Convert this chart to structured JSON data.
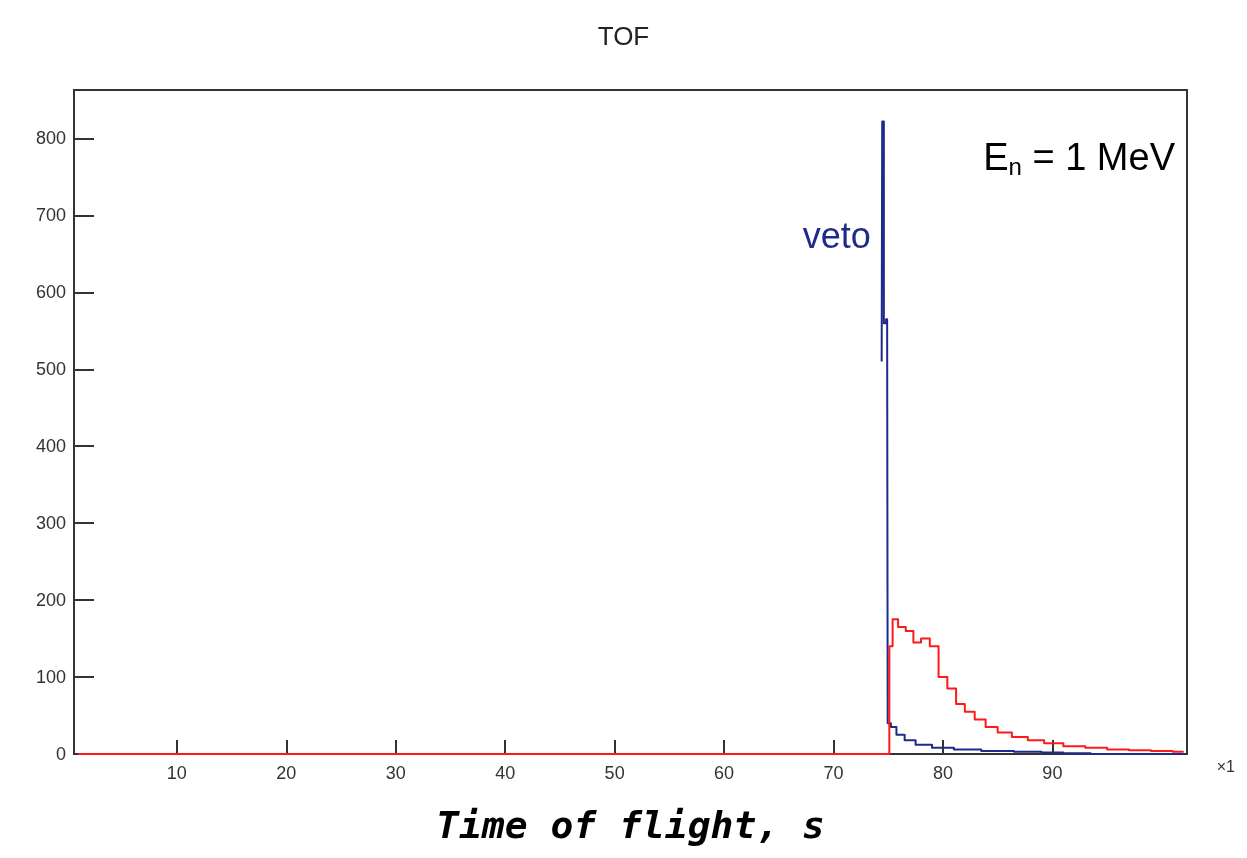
{
  "chart_data": {
    "type": "step",
    "title": "TOF",
    "xlabel": "Time of flight, s",
    "annotations": [
      "E$_{n}$ = 1 MeV",
      "×1"
    ],
    "xlim": [
      0.6,
      102.3
    ],
    "xticks": [
      10,
      20,
      30,
      40,
      50,
      60,
      70,
      80,
      90
    ],
    "ylim": [
      0,
      863
    ],
    "yticks": [
      0,
      100,
      200,
      300,
      400,
      500,
      600,
      700,
      800
    ],
    "grid": false,
    "legend": false,
    "marker": "none",
    "line_style": "solid",
    "series": [
      {
        "name": "veto",
        "color": "#1f2a8a",
        "x": [
          74.4,
          74.5,
          74.7,
          74.9,
          75.0,
          75.5,
          76,
          77,
          78,
          80,
          82,
          85,
          88,
          90,
          92,
          95,
          102
        ],
        "values": [
          510,
          822,
          560,
          565,
          40,
          35,
          25,
          18,
          12,
          8,
          6,
          4,
          3,
          2,
          1,
          0,
          0
        ]
      },
      {
        "color": "#ff1a1a",
        "x": [
          1,
          75.0,
          75.2,
          75.6,
          76.2,
          77,
          77.6,
          78.4,
          79.2,
          80,
          80.8,
          81.6,
          82.4,
          83.4,
          84.4,
          85.6,
          87,
          88.5,
          90,
          92,
          94,
          96,
          98,
          100,
          102
        ],
        "values": [
          0,
          0,
          140,
          175,
          165,
          160,
          145,
          150,
          140,
          100,
          85,
          65,
          55,
          45,
          35,
          28,
          22,
          18,
          14,
          10,
          8,
          6,
          5,
          4,
          3
        ]
      }
    ]
  }
}
